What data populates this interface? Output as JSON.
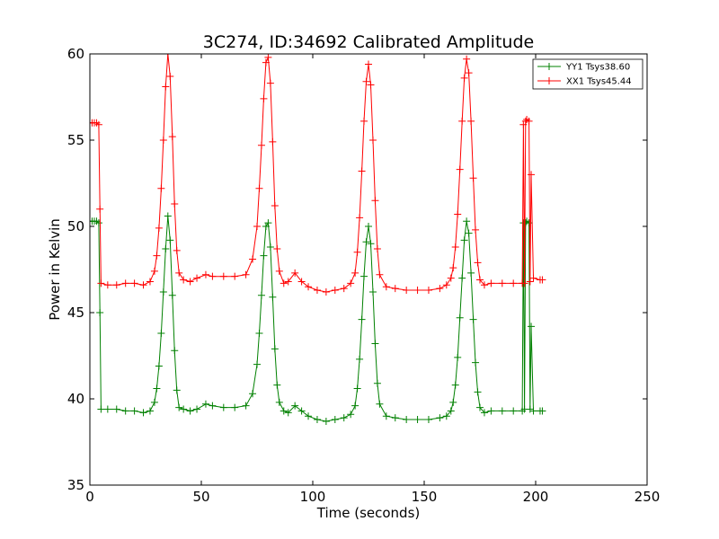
{
  "chart_data": {
    "type": "line",
    "title": "3C274, ID:34692 Calibrated Amplitude",
    "xlabel": "Time (seconds)",
    "ylabel": "Power in Kelvin",
    "xlim": [
      0,
      250
    ],
    "ylim": [
      35,
      60
    ],
    "xticks": [
      "0",
      "50",
      "100",
      "150",
      "200",
      "250"
    ],
    "yticks": [
      "35",
      "40",
      "45",
      "50",
      "55",
      "60"
    ],
    "grid": false,
    "legend_position": "top-right",
    "series": [
      {
        "name": "YY1 Tsys38.60",
        "color": "#008000",
        "marker": "+",
        "x": [
          0,
          1,
          2,
          3,
          4,
          4.5,
          5,
          8,
          12,
          16,
          20,
          24,
          27,
          29,
          30,
          31,
          32,
          33,
          34,
          35,
          36,
          37,
          38,
          39,
          40,
          42,
          45,
          48,
          52,
          55,
          60,
          65,
          70,
          73,
          75,
          76,
          77,
          78,
          79,
          80,
          81,
          82,
          83,
          84,
          85,
          87,
          89,
          92,
          95,
          98,
          102,
          106,
          110,
          114,
          117,
          119,
          120,
          121,
          122,
          123,
          124,
          125,
          126,
          127,
          128,
          129,
          130,
          133,
          137,
          142,
          147,
          152,
          157,
          160,
          162,
          163,
          164,
          165,
          166,
          167,
          168,
          169,
          170,
          171,
          172,
          173,
          174,
          175,
          177,
          180,
          185,
          190,
          194,
          194.5,
          195,
          195.5,
          196,
          197,
          197.5,
          198,
          199,
          202,
          203
        ],
        "y": [
          50.3,
          50.3,
          50.3,
          50.3,
          50.2,
          45.0,
          39.4,
          39.4,
          39.4,
          39.3,
          39.3,
          39.2,
          39.3,
          39.8,
          40.6,
          41.9,
          43.8,
          46.2,
          48.7,
          50.6,
          49.2,
          46.0,
          42.8,
          40.5,
          39.5,
          39.4,
          39.3,
          39.4,
          39.7,
          39.6,
          39.5,
          39.5,
          39.6,
          40.3,
          42.0,
          43.8,
          46.0,
          48.3,
          50.0,
          50.2,
          48.8,
          45.9,
          42.9,
          40.8,
          39.8,
          39.3,
          39.2,
          39.6,
          39.3,
          39.0,
          38.8,
          38.7,
          38.8,
          38.9,
          39.1,
          39.6,
          40.6,
          42.3,
          44.6,
          47.1,
          49.1,
          50.0,
          49.0,
          46.2,
          43.2,
          40.9,
          39.7,
          39.0,
          38.9,
          38.8,
          38.8,
          38.8,
          38.9,
          39.0,
          39.3,
          39.8,
          40.8,
          42.4,
          44.7,
          47.0,
          49.2,
          50.3,
          49.6,
          47.3,
          44.6,
          42.1,
          40.4,
          39.5,
          39.2,
          39.3,
          39.3,
          39.3,
          39.3,
          50.2,
          39.4,
          50.2,
          50.3,
          50.2,
          39.4,
          44.2,
          39.3,
          39.3,
          39.3
        ]
      },
      {
        "name": "XX1 Tsys45.44",
        "color": "#ff0000",
        "marker": "+",
        "x": [
          0,
          1,
          2,
          3,
          4,
          4.5,
          5,
          8,
          12,
          16,
          20,
          24,
          27,
          29,
          30,
          31,
          32,
          33,
          34,
          35,
          36,
          37,
          38,
          39,
          40,
          42,
          45,
          48,
          52,
          55,
          60,
          65,
          70,
          73,
          75,
          76,
          77,
          78,
          79,
          80,
          81,
          82,
          83,
          84,
          85,
          87,
          89,
          92,
          95,
          98,
          102,
          106,
          110,
          114,
          117,
          119,
          120,
          121,
          122,
          123,
          124,
          125,
          126,
          127,
          128,
          129,
          130,
          133,
          137,
          142,
          147,
          152,
          157,
          160,
          162,
          163,
          164,
          165,
          166,
          167,
          168,
          169,
          170,
          171,
          172,
          173,
          174,
          175,
          177,
          180,
          185,
          190,
          194,
          194.5,
          195,
          195.5,
          196,
          197,
          197.5,
          198,
          199,
          202,
          203
        ],
        "y": [
          56.0,
          56.0,
          56.0,
          56.0,
          55.9,
          51.0,
          46.7,
          46.6,
          46.6,
          46.7,
          46.7,
          46.6,
          46.8,
          47.4,
          48.3,
          49.9,
          52.2,
          55.0,
          58.1,
          60.0,
          58.7,
          55.2,
          51.3,
          48.6,
          47.3,
          46.9,
          46.8,
          47.0,
          47.2,
          47.1,
          47.1,
          47.1,
          47.2,
          48.1,
          50.0,
          52.2,
          54.7,
          57.4,
          59.5,
          59.8,
          58.3,
          54.9,
          51.2,
          48.7,
          47.4,
          46.7,
          46.8,
          47.3,
          46.8,
          46.5,
          46.3,
          46.2,
          46.3,
          46.4,
          46.7,
          47.3,
          48.5,
          50.5,
          53.2,
          56.1,
          58.4,
          59.4,
          58.2,
          55.0,
          51.5,
          48.7,
          47.2,
          46.5,
          46.4,
          46.3,
          46.3,
          46.3,
          46.4,
          46.6,
          47.0,
          47.6,
          48.8,
          50.7,
          53.3,
          56.1,
          58.6,
          59.7,
          58.9,
          56.1,
          52.8,
          49.8,
          47.9,
          46.9,
          46.6,
          46.7,
          46.7,
          46.7,
          46.7,
          55.9,
          46.7,
          56.1,
          56.2,
          56.1,
          46.8,
          53.0,
          47.0,
          46.9,
          46.9
        ]
      }
    ]
  }
}
